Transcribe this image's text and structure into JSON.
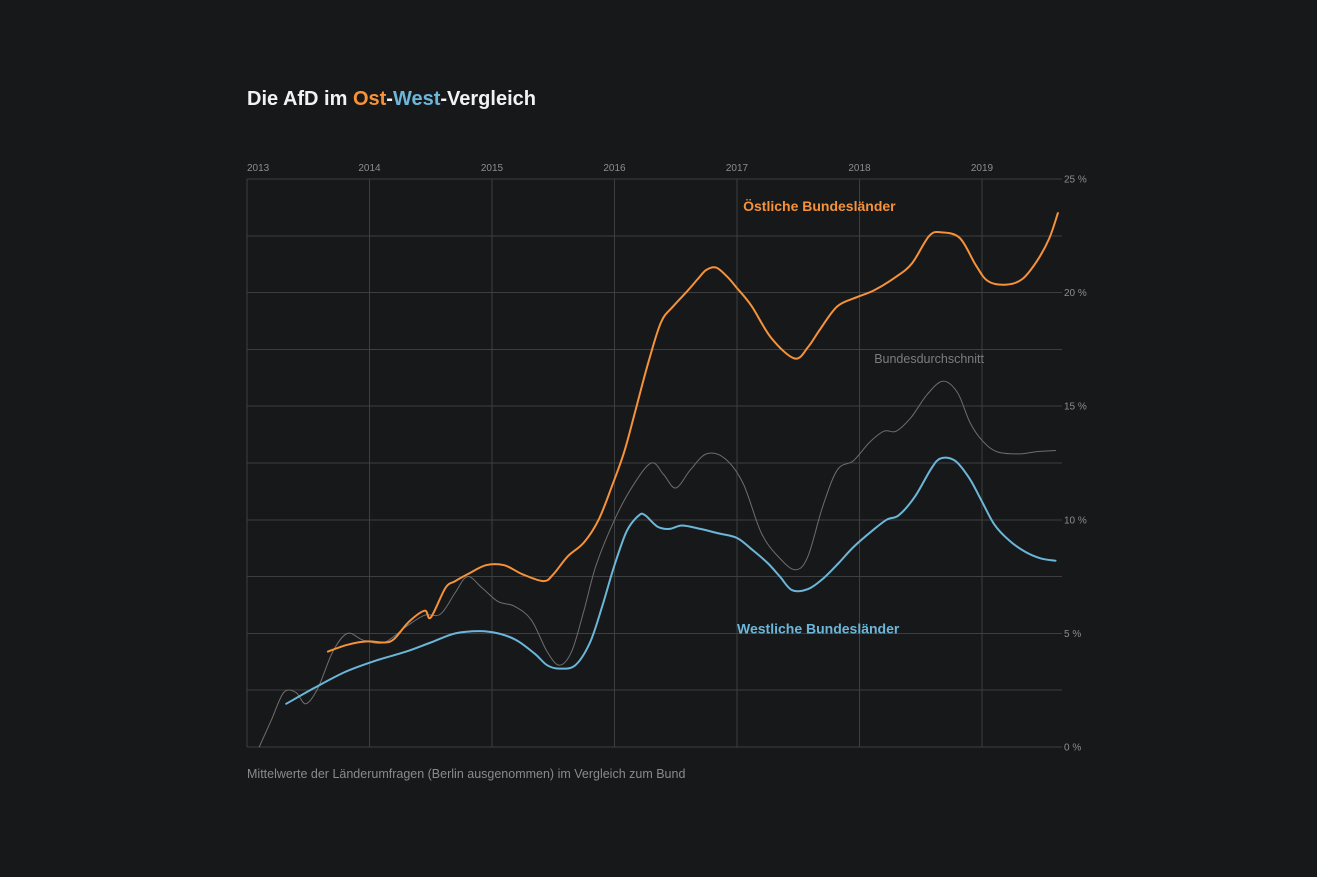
{
  "title": {
    "prefix": "Die AfD im ",
    "ost": "Ost",
    "dash1": "-",
    "west": "West",
    "suffix": "-Vergleich"
  },
  "caption": "Mittelwerte der Länderumfragen (Berlin ausgenommen) im Vergleich zum Bund",
  "colors": {
    "background": "#17181a",
    "ost": "#f5923a",
    "west": "#6cb6d9",
    "bund": "#6e6e6e",
    "grid": "#3d3e40",
    "text": "#f2f2f2"
  },
  "chart_data": {
    "type": "line",
    "title": "Die AfD im Ost-West-Vergleich",
    "xlabel": "",
    "ylabel": "",
    "xlim": [
      2013,
      2019.65
    ],
    "ylim": [
      0,
      25
    ],
    "x_ticks": [
      2013,
      2014,
      2015,
      2016,
      2017,
      2018,
      2019
    ],
    "x_tick_labels": [
      "2013",
      "2014",
      "2015",
      "2016",
      "2017",
      "2018",
      "2019"
    ],
    "y_ticks": [
      0,
      5,
      10,
      15,
      20,
      25
    ],
    "y_tick_labels": [
      "0 %",
      "5 %",
      "10 %",
      "15 %",
      "20 %",
      "25 %"
    ],
    "y_gridlines": [
      0,
      2.5,
      5,
      7.5,
      10,
      12.5,
      15,
      17.5,
      20,
      22.5,
      25
    ],
    "grid": true,
    "legend": "inline-labels",
    "series": [
      {
        "name": "Östliche Bundesländer",
        "key": "ost",
        "points": [
          [
            2013.66,
            4.2
          ],
          [
            2013.82,
            4.5
          ],
          [
            2013.98,
            4.65
          ],
          [
            2014.12,
            4.6
          ],
          [
            2014.2,
            4.75
          ],
          [
            2014.32,
            5.5
          ],
          [
            2014.45,
            6.0
          ],
          [
            2014.5,
            5.7
          ],
          [
            2014.62,
            7.0
          ],
          [
            2014.7,
            7.3
          ],
          [
            2014.8,
            7.6
          ],
          [
            2014.95,
            8.0
          ],
          [
            2015.1,
            8.0
          ],
          [
            2015.25,
            7.6
          ],
          [
            2015.42,
            7.3
          ],
          [
            2015.5,
            7.6
          ],
          [
            2015.62,
            8.4
          ],
          [
            2015.75,
            9.0
          ],
          [
            2015.87,
            10.0
          ],
          [
            2015.98,
            11.5
          ],
          [
            2016.08,
            13.0
          ],
          [
            2016.18,
            15.0
          ],
          [
            2016.28,
            17.0
          ],
          [
            2016.38,
            18.7
          ],
          [
            2016.48,
            19.4
          ],
          [
            2016.6,
            20.1
          ],
          [
            2016.68,
            20.6
          ],
          [
            2016.75,
            21.0
          ],
          [
            2016.83,
            21.1
          ],
          [
            2016.92,
            20.7
          ],
          [
            2017.0,
            20.2
          ],
          [
            2017.12,
            19.4
          ],
          [
            2017.28,
            18.0
          ],
          [
            2017.47,
            17.1
          ],
          [
            2017.58,
            17.6
          ],
          [
            2017.68,
            18.4
          ],
          [
            2017.82,
            19.4
          ],
          [
            2017.98,
            19.8
          ],
          [
            2018.12,
            20.1
          ],
          [
            2018.3,
            20.7
          ],
          [
            2018.43,
            21.3
          ],
          [
            2018.57,
            22.5
          ],
          [
            2018.67,
            22.65
          ],
          [
            2018.82,
            22.4
          ],
          [
            2018.95,
            21.2
          ],
          [
            2019.05,
            20.5
          ],
          [
            2019.2,
            20.35
          ],
          [
            2019.33,
            20.6
          ],
          [
            2019.45,
            21.4
          ],
          [
            2019.55,
            22.4
          ],
          [
            2019.62,
            23.5
          ]
        ]
      },
      {
        "name": "Westliche Bundesländer",
        "key": "west",
        "points": [
          [
            2013.32,
            1.9
          ],
          [
            2013.55,
            2.6
          ],
          [
            2013.8,
            3.3
          ],
          [
            2014.05,
            3.8
          ],
          [
            2014.3,
            4.2
          ],
          [
            2014.5,
            4.6
          ],
          [
            2014.7,
            5.0
          ],
          [
            2014.9,
            5.1
          ],
          [
            2015.05,
            5.0
          ],
          [
            2015.2,
            4.7
          ],
          [
            2015.35,
            4.1
          ],
          [
            2015.45,
            3.6
          ],
          [
            2015.55,
            3.45
          ],
          [
            2015.68,
            3.6
          ],
          [
            2015.8,
            4.6
          ],
          [
            2015.9,
            6.2
          ],
          [
            2016.0,
            8.0
          ],
          [
            2016.1,
            9.5
          ],
          [
            2016.2,
            10.2
          ],
          [
            2016.25,
            10.2
          ],
          [
            2016.35,
            9.7
          ],
          [
            2016.45,
            9.6
          ],
          [
            2016.55,
            9.75
          ],
          [
            2016.7,
            9.6
          ],
          [
            2016.85,
            9.4
          ],
          [
            2017.0,
            9.2
          ],
          [
            2017.12,
            8.7
          ],
          [
            2017.25,
            8.1
          ],
          [
            2017.35,
            7.5
          ],
          [
            2017.45,
            6.9
          ],
          [
            2017.58,
            6.95
          ],
          [
            2017.7,
            7.4
          ],
          [
            2017.83,
            8.1
          ],
          [
            2017.95,
            8.8
          ],
          [
            2018.1,
            9.5
          ],
          [
            2018.22,
            10.0
          ],
          [
            2018.32,
            10.2
          ],
          [
            2018.45,
            11.0
          ],
          [
            2018.58,
            12.2
          ],
          [
            2018.66,
            12.7
          ],
          [
            2018.78,
            12.6
          ],
          [
            2018.9,
            11.8
          ],
          [
            2019.0,
            10.8
          ],
          [
            2019.1,
            9.8
          ],
          [
            2019.22,
            9.1
          ],
          [
            2019.35,
            8.6
          ],
          [
            2019.48,
            8.3
          ],
          [
            2019.6,
            8.2
          ]
        ]
      },
      {
        "name": "Bundesdurchschnitt",
        "key": "bund",
        "points": [
          [
            2013.1,
            0.0
          ],
          [
            2013.2,
            1.2
          ],
          [
            2013.3,
            2.4
          ],
          [
            2013.4,
            2.4
          ],
          [
            2013.48,
            1.9
          ],
          [
            2013.58,
            2.6
          ],
          [
            2013.7,
            4.2
          ],
          [
            2013.82,
            5.0
          ],
          [
            2013.95,
            4.7
          ],
          [
            2014.12,
            4.6
          ],
          [
            2014.3,
            5.3
          ],
          [
            2014.45,
            5.8
          ],
          [
            2014.58,
            5.85
          ],
          [
            2014.7,
            6.8
          ],
          [
            2014.8,
            7.5
          ],
          [
            2014.92,
            7.0
          ],
          [
            2015.05,
            6.4
          ],
          [
            2015.18,
            6.2
          ],
          [
            2015.32,
            5.6
          ],
          [
            2015.45,
            4.2
          ],
          [
            2015.55,
            3.6
          ],
          [
            2015.65,
            4.2
          ],
          [
            2015.75,
            6.0
          ],
          [
            2015.85,
            8.0
          ],
          [
            2016.0,
            10.0
          ],
          [
            2016.15,
            11.5
          ],
          [
            2016.3,
            12.5
          ],
          [
            2016.4,
            12.0
          ],
          [
            2016.5,
            11.4
          ],
          [
            2016.62,
            12.2
          ],
          [
            2016.75,
            12.9
          ],
          [
            2016.9,
            12.7
          ],
          [
            2017.05,
            11.6
          ],
          [
            2017.2,
            9.4
          ],
          [
            2017.35,
            8.3
          ],
          [
            2017.48,
            7.8
          ],
          [
            2017.58,
            8.4
          ],
          [
            2017.7,
            10.6
          ],
          [
            2017.82,
            12.2
          ],
          [
            2017.95,
            12.6
          ],
          [
            2018.08,
            13.4
          ],
          [
            2018.2,
            13.9
          ],
          [
            2018.3,
            13.9
          ],
          [
            2018.42,
            14.5
          ],
          [
            2018.55,
            15.5
          ],
          [
            2018.68,
            16.1
          ],
          [
            2018.8,
            15.6
          ],
          [
            2018.9,
            14.3
          ],
          [
            2019.0,
            13.5
          ],
          [
            2019.12,
            13.0
          ],
          [
            2019.3,
            12.9
          ],
          [
            2019.45,
            13.0
          ],
          [
            2019.6,
            13.05
          ]
        ]
      }
    ],
    "annotations": [
      {
        "text": "Östliche Bundesländer",
        "series": "ost",
        "x": 2017.05,
        "y": 23.6
      },
      {
        "text": "Westliche Bundesländer",
        "series": "west",
        "x": 2017.0,
        "y": 5.0
      },
      {
        "text": "Bundesdurchschnitt",
        "series": "bund",
        "x": 2018.12,
        "y": 16.9
      }
    ]
  }
}
